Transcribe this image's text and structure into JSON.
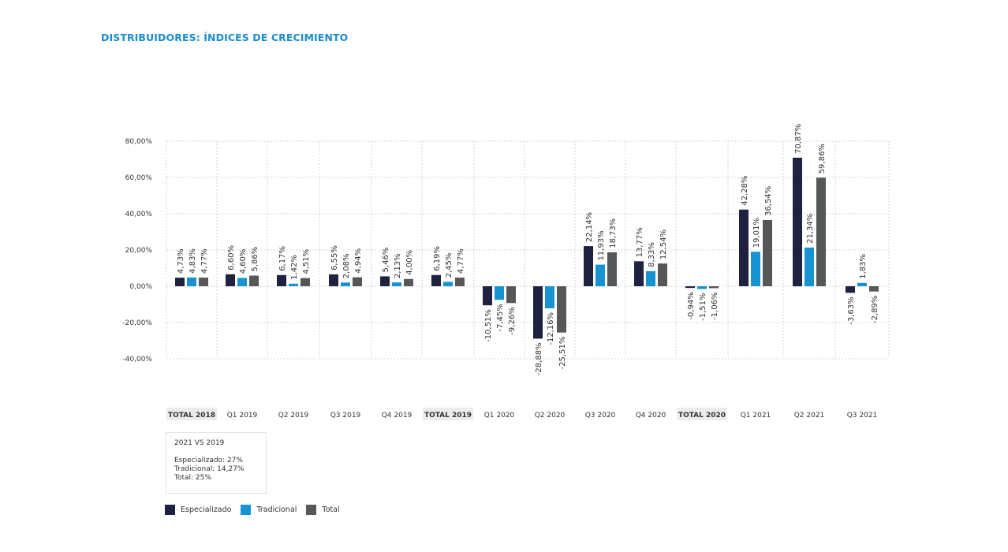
{
  "title": "DISTRIBUIDORES: ÍNDICES DE CRECIMIENTO",
  "colors": {
    "title": "#1b8ccf",
    "especializado": "#1e2140",
    "tradicional": "#1793d1",
    "total": "#565758",
    "grid": "#d6d6d6",
    "axis_text": "#333333",
    "highlight_bg": "#ececec"
  },
  "chart_data": {
    "type": "bar",
    "categories": [
      "TOTAL 2018",
      "Q1 2019",
      "Q2 2019",
      "Q3 2019",
      "Q4 2019",
      "TOTAL 2019",
      "Q1 2020",
      "Q2 2020",
      "Q3 2020",
      "Q4 2020",
      "TOTAL 2020",
      "Q1 2021",
      "Q2 2021",
      "Q3 2021"
    ],
    "highlighted_categories": [
      "TOTAL 2018",
      "TOTAL 2019",
      "TOTAL 2020"
    ],
    "series": [
      {
        "name": "Especializado",
        "color": "#1e2140",
        "values": [
          4.73,
          6.6,
          6.17,
          6.55,
          5.46,
          6.19,
          -10.51,
          -28.88,
          22.14,
          13.77,
          -0.94,
          42.28,
          70.87,
          -3.63
        ],
        "labels": [
          "4,73%",
          "6,60%",
          "6,17%",
          "6,55%",
          "5,46%",
          "6,19%",
          "-10,51%",
          "-28,88%",
          "22,14%",
          "13,77%",
          "-0,94%",
          "42,28%",
          "70,87%",
          "-3,63%"
        ]
      },
      {
        "name": "Tradicional",
        "color": "#1793d1",
        "values": [
          4.83,
          4.6,
          1.42,
          2.08,
          2.13,
          2.45,
          -7.45,
          -12.16,
          11.93,
          8.33,
          -1.51,
          19.01,
          21.34,
          1.83
        ],
        "labels": [
          "4,83%",
          "4,60%",
          "1,42%",
          "2,08%",
          "2,13%",
          "2,45%",
          "-7,45%",
          "-12,16%",
          "11,93%",
          "8,33%",
          "-1,51%",
          "19,01%",
          "21,34%",
          "1,83%"
        ]
      },
      {
        "name": "Total",
        "color": "#565758",
        "values": [
          4.77,
          5.86,
          4.51,
          4.94,
          4.0,
          4.77,
          -9.26,
          -25.51,
          18.73,
          12.54,
          -1.06,
          36.54,
          59.86,
          -2.89
        ],
        "labels": [
          "4,77%",
          "5,86%",
          "4,51%",
          "4,94%",
          "4,00%",
          "4,77%",
          "-9,26%",
          "-25,51%",
          "18,73%",
          "12,54%",
          "-1,06%",
          "36,54%",
          "59,86%",
          "-2,89%"
        ]
      }
    ],
    "yticks": [
      80,
      60,
      40,
      20,
      0,
      -20,
      -40
    ],
    "ytick_labels": [
      "80,00%",
      "60,00%",
      "40,00%",
      "20,00%",
      "0,00%",
      "-20,00%",
      "-40,00%"
    ],
    "ylim": [
      -40,
      80
    ],
    "grid": true,
    "legend_position": "bottom-left"
  },
  "note": {
    "title": "2021 VS 2019",
    "lines": [
      "Especializado: 27%",
      "Tradicional: 14,27%",
      "Total: 25%"
    ]
  },
  "legend": {
    "items": [
      {
        "label": "Especializado",
        "color": "#1e2140"
      },
      {
        "label": "Tradicional",
        "color": "#1793d1"
      },
      {
        "label": "Total",
        "color": "#565758"
      }
    ]
  }
}
